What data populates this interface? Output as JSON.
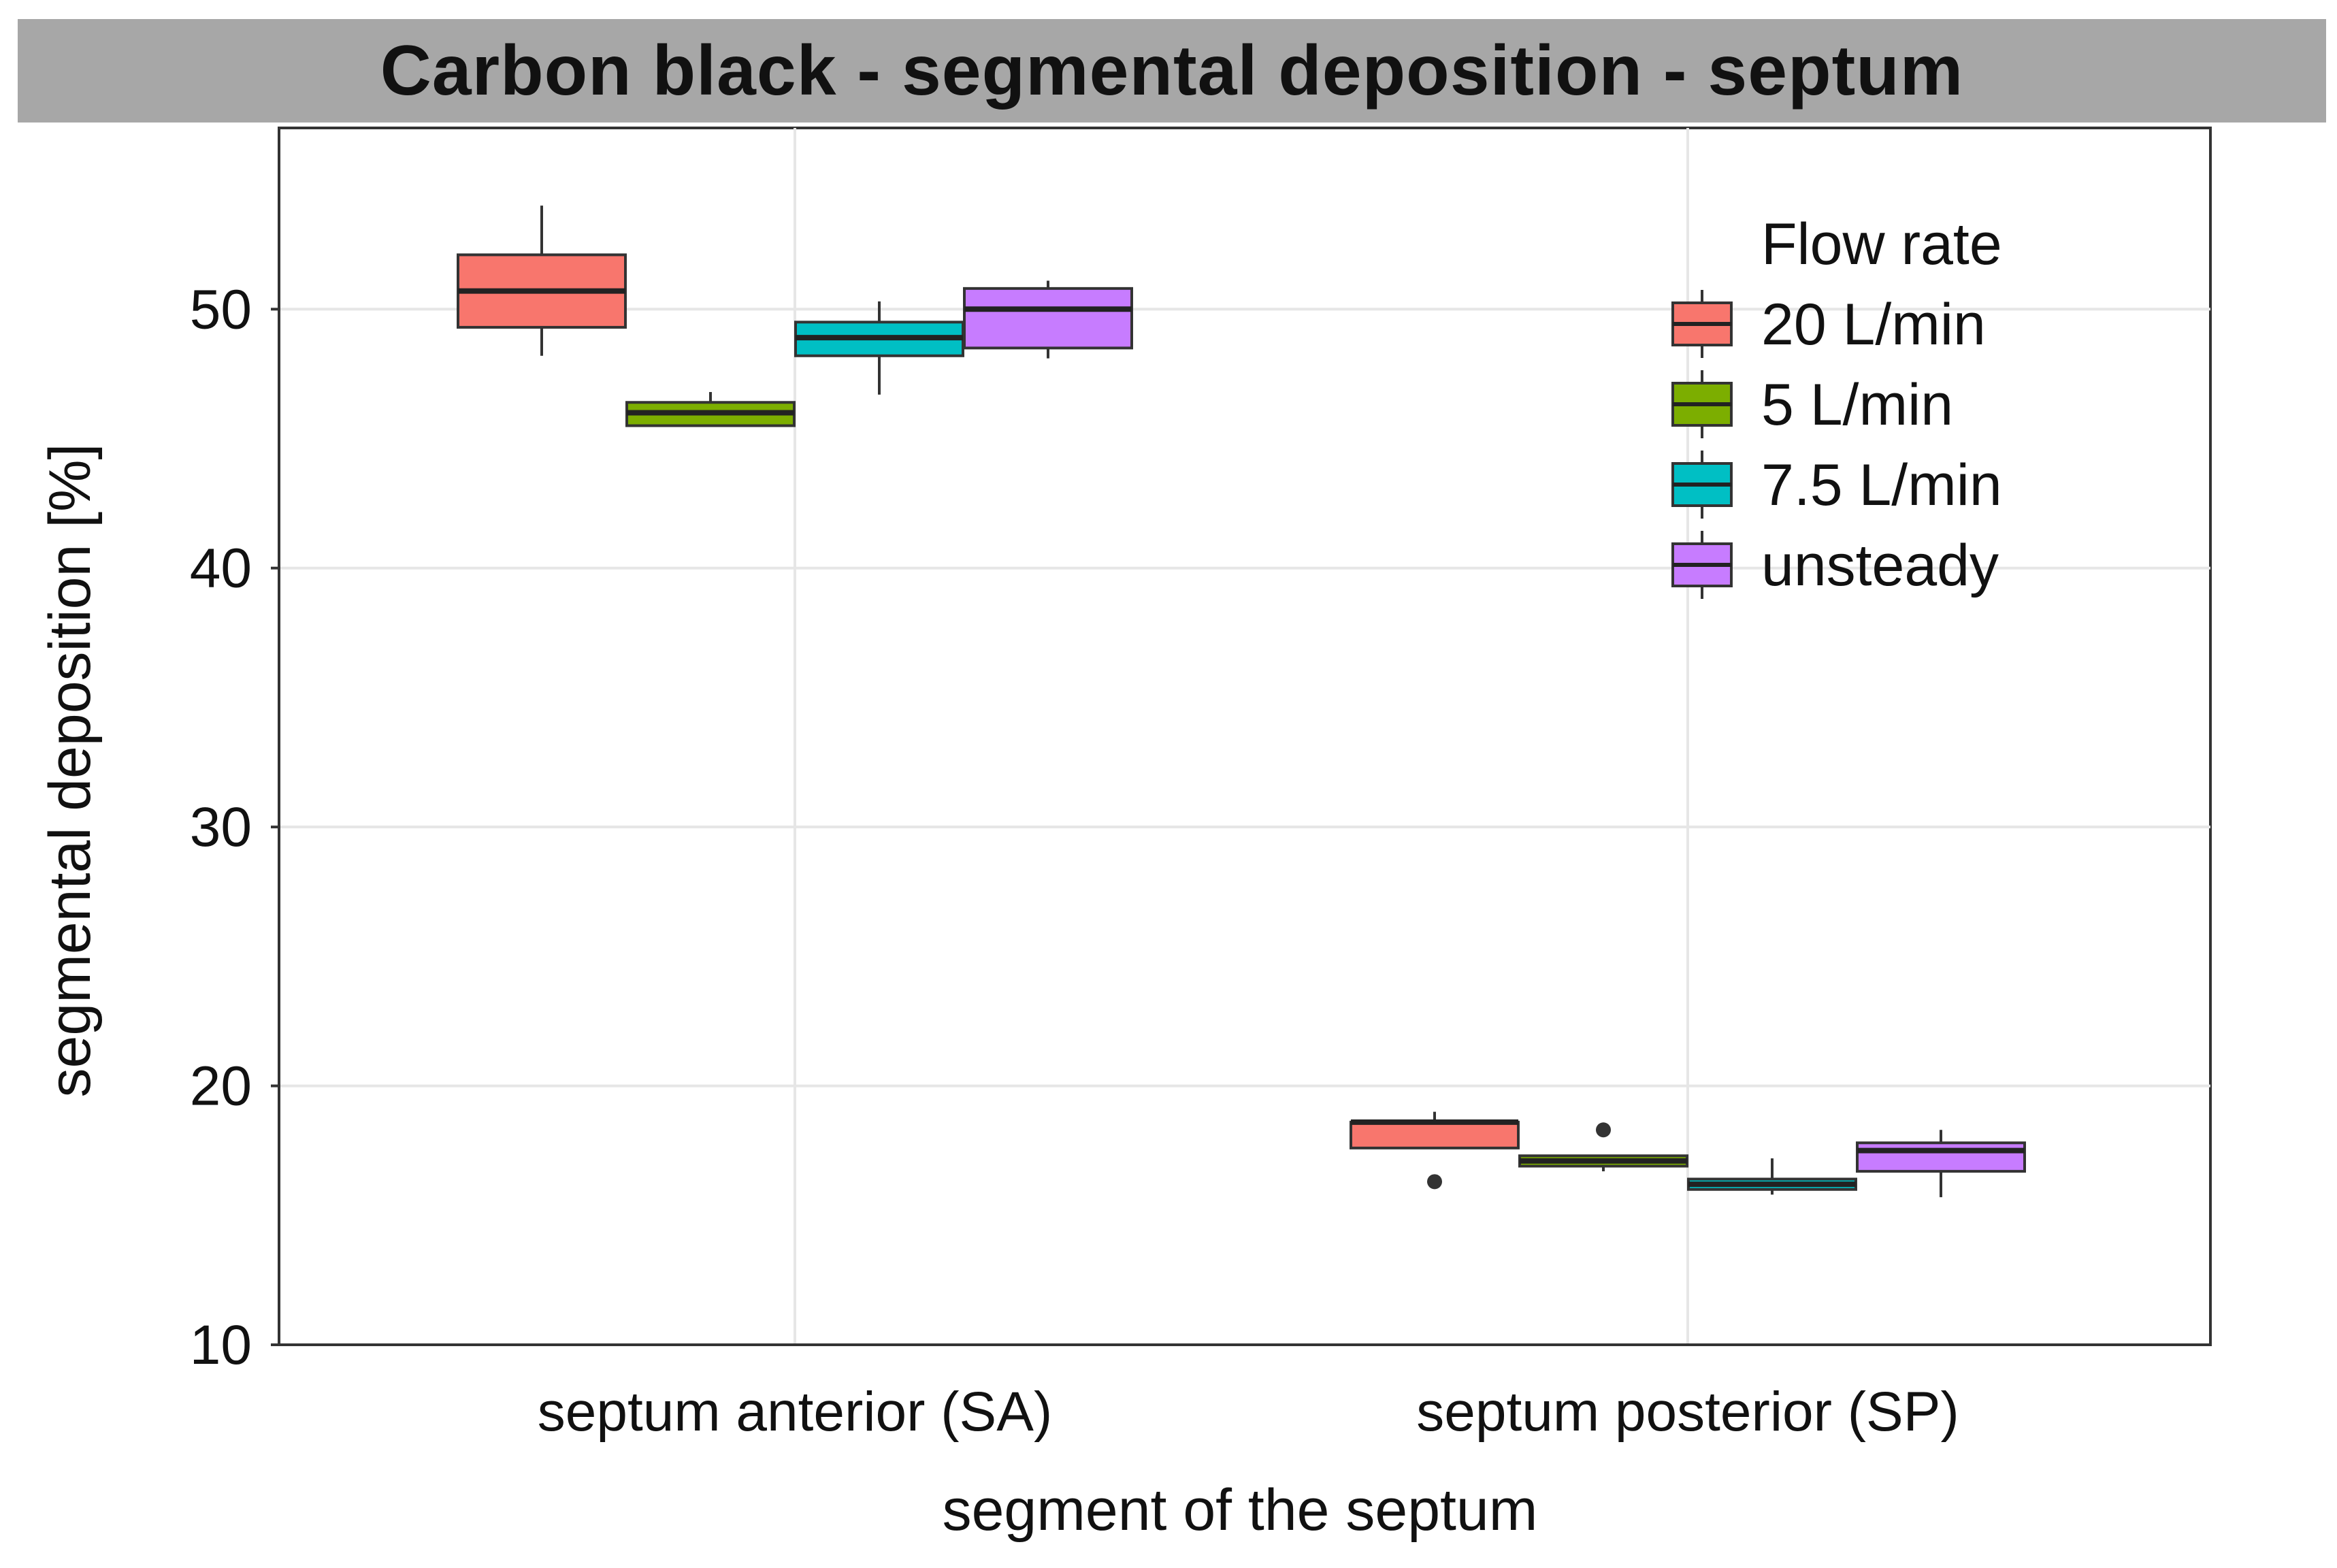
{
  "chart_data": {
    "type": "boxplot",
    "title": "Carbon black - segmental deposition - septum",
    "xlabel": "segment of the septum",
    "ylabel": "segmental deposition [%]",
    "ylim": [
      10,
      57
    ],
    "yticks": [
      10,
      20,
      30,
      40,
      50
    ],
    "grid": true,
    "legend_placement": "top-right",
    "legend_title": "Flow rate",
    "categories": [
      "septum anterior (SA)",
      "septum posterior (SP)"
    ],
    "series": [
      {
        "name": "20 L/min",
        "color": "#f8766d",
        "boxes": [
          {
            "whisker_low": 48.2,
            "q1": 49.3,
            "median": 50.7,
            "q3": 52.1,
            "whisker_high": 54.0,
            "outliers": []
          },
          {
            "whisker_low": 17.6,
            "q1": 17.6,
            "median": 18.6,
            "q3": 18.6,
            "whisker_high": 19.0,
            "outliers": [
              16.3
            ]
          }
        ]
      },
      {
        "name": "5 L/min",
        "color": "#7cae00",
        "boxes": [
          {
            "whisker_low": 45.5,
            "q1": 45.5,
            "median": 46.0,
            "q3": 46.4,
            "whisker_high": 46.8,
            "outliers": []
          },
          {
            "whisker_low": 16.7,
            "q1": 16.9,
            "median": 17.1,
            "q3": 17.3,
            "whisker_high": 17.3,
            "outliers": [
              18.3
            ]
          }
        ]
      },
      {
        "name": "7.5 L/min",
        "color": "#00bfc4",
        "boxes": [
          {
            "whisker_low": 46.7,
            "q1": 48.2,
            "median": 48.9,
            "q3": 49.5,
            "whisker_high": 50.3,
            "outliers": []
          },
          {
            "whisker_low": 15.8,
            "q1": 16.0,
            "median": 16.2,
            "q3": 16.4,
            "whisker_high": 17.2,
            "outliers": []
          }
        ]
      },
      {
        "name": "unsteady",
        "color": "#c77cff",
        "boxes": [
          {
            "whisker_low": 48.1,
            "q1": 48.5,
            "median": 50.0,
            "q3": 50.8,
            "whisker_high": 51.1,
            "outliers": []
          },
          {
            "whisker_low": 15.7,
            "q1": 16.7,
            "median": 17.5,
            "q3": 17.8,
            "whisker_high": 18.3,
            "outliers": []
          }
        ]
      }
    ]
  }
}
